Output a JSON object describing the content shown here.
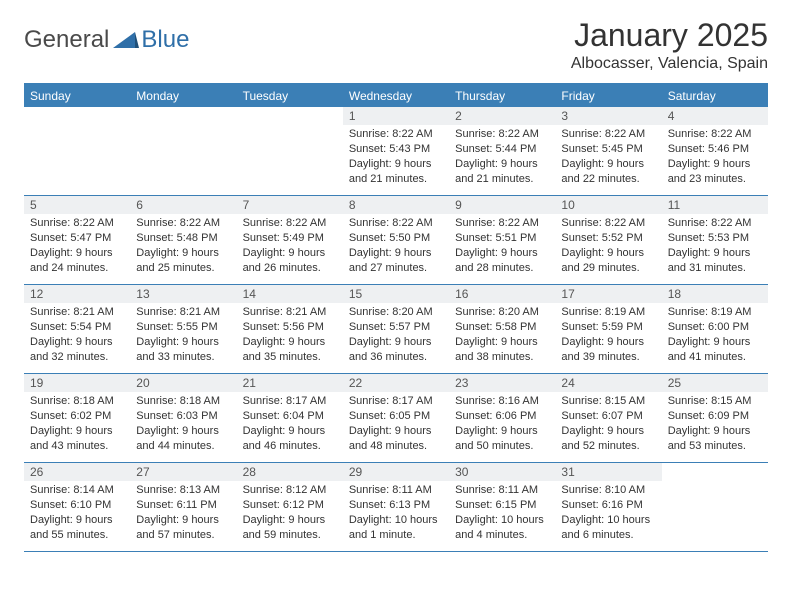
{
  "logo": {
    "word1": "General",
    "word2": "Blue"
  },
  "title": "January 2025",
  "location": "Albocasser, Valencia, Spain",
  "colors": {
    "header_bg": "#3b7fb6",
    "header_text": "#ffffff",
    "daynum_bg": "#eef0f2",
    "border": "#3b7fb6",
    "logo_blue": "#2f6fa8"
  },
  "day_names": [
    "Sunday",
    "Monday",
    "Tuesday",
    "Wednesday",
    "Thursday",
    "Friday",
    "Saturday"
  ],
  "weeks": [
    [
      {
        "n": "",
        "sr": "",
        "ss": "",
        "dl": ""
      },
      {
        "n": "",
        "sr": "",
        "ss": "",
        "dl": ""
      },
      {
        "n": "",
        "sr": "",
        "ss": "",
        "dl": ""
      },
      {
        "n": "1",
        "sr": "8:22 AM",
        "ss": "5:43 PM",
        "dl": "9 hours and 21 minutes."
      },
      {
        "n": "2",
        "sr": "8:22 AM",
        "ss": "5:44 PM",
        "dl": "9 hours and 21 minutes."
      },
      {
        "n": "3",
        "sr": "8:22 AM",
        "ss": "5:45 PM",
        "dl": "9 hours and 22 minutes."
      },
      {
        "n": "4",
        "sr": "8:22 AM",
        "ss": "5:46 PM",
        "dl": "9 hours and 23 minutes."
      }
    ],
    [
      {
        "n": "5",
        "sr": "8:22 AM",
        "ss": "5:47 PM",
        "dl": "9 hours and 24 minutes."
      },
      {
        "n": "6",
        "sr": "8:22 AM",
        "ss": "5:48 PM",
        "dl": "9 hours and 25 minutes."
      },
      {
        "n": "7",
        "sr": "8:22 AM",
        "ss": "5:49 PM",
        "dl": "9 hours and 26 minutes."
      },
      {
        "n": "8",
        "sr": "8:22 AM",
        "ss": "5:50 PM",
        "dl": "9 hours and 27 minutes."
      },
      {
        "n": "9",
        "sr": "8:22 AM",
        "ss": "5:51 PM",
        "dl": "9 hours and 28 minutes."
      },
      {
        "n": "10",
        "sr": "8:22 AM",
        "ss": "5:52 PM",
        "dl": "9 hours and 29 minutes."
      },
      {
        "n": "11",
        "sr": "8:22 AM",
        "ss": "5:53 PM",
        "dl": "9 hours and 31 minutes."
      }
    ],
    [
      {
        "n": "12",
        "sr": "8:21 AM",
        "ss": "5:54 PM",
        "dl": "9 hours and 32 minutes."
      },
      {
        "n": "13",
        "sr": "8:21 AM",
        "ss": "5:55 PM",
        "dl": "9 hours and 33 minutes."
      },
      {
        "n": "14",
        "sr": "8:21 AM",
        "ss": "5:56 PM",
        "dl": "9 hours and 35 minutes."
      },
      {
        "n": "15",
        "sr": "8:20 AM",
        "ss": "5:57 PM",
        "dl": "9 hours and 36 minutes."
      },
      {
        "n": "16",
        "sr": "8:20 AM",
        "ss": "5:58 PM",
        "dl": "9 hours and 38 minutes."
      },
      {
        "n": "17",
        "sr": "8:19 AM",
        "ss": "5:59 PM",
        "dl": "9 hours and 39 minutes."
      },
      {
        "n": "18",
        "sr": "8:19 AM",
        "ss": "6:00 PM",
        "dl": "9 hours and 41 minutes."
      }
    ],
    [
      {
        "n": "19",
        "sr": "8:18 AM",
        "ss": "6:02 PM",
        "dl": "9 hours and 43 minutes."
      },
      {
        "n": "20",
        "sr": "8:18 AM",
        "ss": "6:03 PM",
        "dl": "9 hours and 44 minutes."
      },
      {
        "n": "21",
        "sr": "8:17 AM",
        "ss": "6:04 PM",
        "dl": "9 hours and 46 minutes."
      },
      {
        "n": "22",
        "sr": "8:17 AM",
        "ss": "6:05 PM",
        "dl": "9 hours and 48 minutes."
      },
      {
        "n": "23",
        "sr": "8:16 AM",
        "ss": "6:06 PM",
        "dl": "9 hours and 50 minutes."
      },
      {
        "n": "24",
        "sr": "8:15 AM",
        "ss": "6:07 PM",
        "dl": "9 hours and 52 minutes."
      },
      {
        "n": "25",
        "sr": "8:15 AM",
        "ss": "6:09 PM",
        "dl": "9 hours and 53 minutes."
      }
    ],
    [
      {
        "n": "26",
        "sr": "8:14 AM",
        "ss": "6:10 PM",
        "dl": "9 hours and 55 minutes."
      },
      {
        "n": "27",
        "sr": "8:13 AM",
        "ss": "6:11 PM",
        "dl": "9 hours and 57 minutes."
      },
      {
        "n": "28",
        "sr": "8:12 AM",
        "ss": "6:12 PM",
        "dl": "9 hours and 59 minutes."
      },
      {
        "n": "29",
        "sr": "8:11 AM",
        "ss": "6:13 PM",
        "dl": "10 hours and 1 minute."
      },
      {
        "n": "30",
        "sr": "8:11 AM",
        "ss": "6:15 PM",
        "dl": "10 hours and 4 minutes."
      },
      {
        "n": "31",
        "sr": "8:10 AM",
        "ss": "6:16 PM",
        "dl": "10 hours and 6 minutes."
      },
      {
        "n": "",
        "sr": "",
        "ss": "",
        "dl": ""
      }
    ]
  ],
  "labels": {
    "sunrise": "Sunrise: ",
    "sunset": "Sunset: ",
    "daylight": "Daylight: "
  }
}
